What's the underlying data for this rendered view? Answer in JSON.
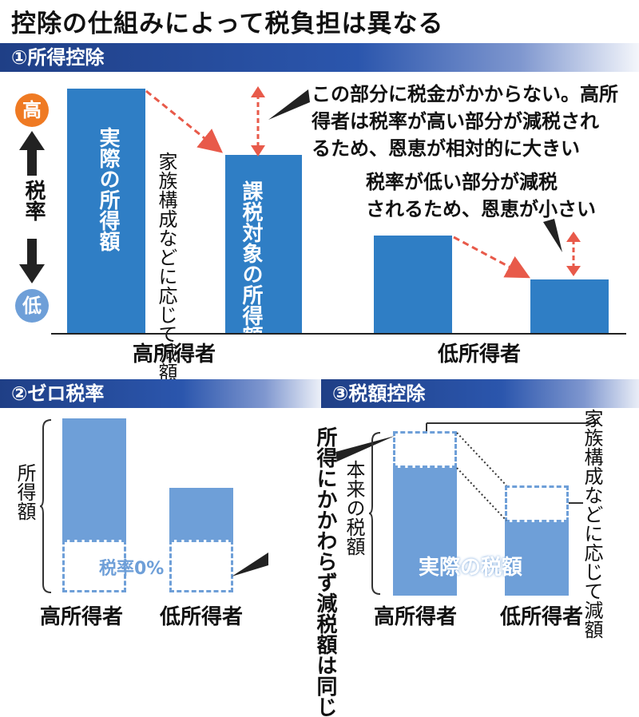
{
  "title": "控除の仕組みによって税負担は異なる",
  "section1": {
    "heading": "①所得控除",
    "rate_high": "高",
    "rate_label": "税率",
    "rate_low": "低",
    "bar_actual": "実際の所得額",
    "deduction_note": "家族構成などに応じて減額",
    "bar_taxable": "課税対象の所得額",
    "note_high_1": "この部分に税金がかからない。高所",
    "note_high_2": "得者は税率が高い部分が減税され",
    "note_high_3": "るため、恩恵が相対的に大きい",
    "note_low_1": "税率が低い部分が減税",
    "note_low_2": "されるため、恩恵が小さい",
    "high_income": "高所得者",
    "low_income": "低所得者"
  },
  "section2": {
    "heading": "②ゼロ税率",
    "income_label": "所得額",
    "zero_rate": "税率0%",
    "high_income": "高所得者",
    "low_income": "低所得者"
  },
  "middle_note": "所得にかかわらず減税額は同じ",
  "section3": {
    "heading": "③税額控除",
    "original_tax": "本来の税額",
    "actual_tax": "実際の税額",
    "deduction_note": "家族構成などに応じて減額",
    "high_income": "高所得者",
    "low_income": "低所得者"
  },
  "colors": {
    "bar": "#2f7ec5",
    "bar_light": "#6e9fd8",
    "arrow": "#e85a4a",
    "high": "#ef7a23",
    "low": "#6e9fd8",
    "header": "#1f3f86"
  }
}
